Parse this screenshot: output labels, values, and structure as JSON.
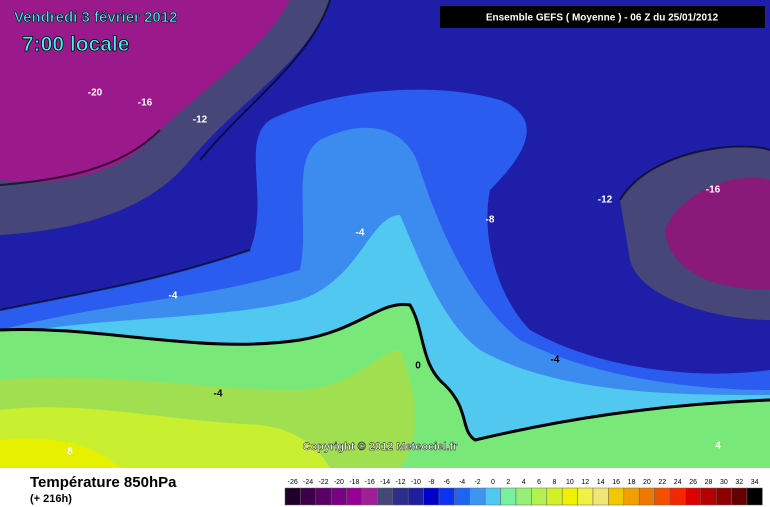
{
  "header": {
    "date": "Vendredi 3 février 2012",
    "time": "7:00 locale",
    "run": "Ensemble GEFS ( Moyenne )  -  06 Z du 25/01/2012"
  },
  "contour_labels": [
    -20,
    -16,
    -12,
    -8,
    -12,
    -16,
    -4,
    -4,
    -4,
    0,
    -4,
    8,
    4
  ],
  "copyright": "Copyright © 2012 Meteociel.fr",
  "footer": {
    "title": "Température 850hPa",
    "lead": "(+ 216h)"
  },
  "colorbar": {
    "values": [
      -26,
      -24,
      -22,
      -20,
      -18,
      -16,
      -14,
      -12,
      -10,
      -8,
      -6,
      -4,
      -2,
      0,
      2,
      4,
      6,
      8,
      10,
      12,
      14,
      16,
      18,
      20,
      22,
      24,
      26,
      28,
      30,
      32,
      34
    ],
    "colors": [
      "#1e0028",
      "#3c0046",
      "#5a0064",
      "#780082",
      "#960096",
      "#a01e96",
      "#464678",
      "#2d2d8c",
      "#1e1ea0",
      "#0000c8",
      "#0a32f0",
      "#1e64f0",
      "#3c96f0",
      "#50c8f0",
      "#78f0a0",
      "#96f078",
      "#b4f050",
      "#d2f028",
      "#f0f000",
      "#f0f046",
      "#f0e678",
      "#f0c800",
      "#f0a000",
      "#f07800",
      "#f05000",
      "#f02800",
      "#dc0000",
      "#b40000",
      "#8c0000",
      "#640000",
      "#000000"
    ]
  }
}
